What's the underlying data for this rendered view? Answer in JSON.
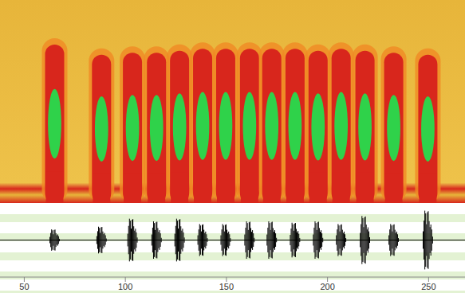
{
  "chart_data": [
    {
      "type": "spectrogram",
      "x": [
        65.0,
        88.2,
        103.5,
        115.4,
        126.8,
        138.2,
        149.6,
        161.4,
        172.4,
        183.9,
        195.3,
        206.7,
        218.5,
        232.7,
        249.6
      ],
      "values": [
        0.78,
        0.73,
        0.74,
        0.74,
        0.75,
        0.76,
        0.76,
        0.76,
        0.76,
        0.76,
        0.75,
        0.76,
        0.75,
        0.74,
        0.73
      ],
      "xlim": [
        38,
        268
      ],
      "ylim": [
        0,
        1
      ],
      "tick_labels": false,
      "color": "#2fd24a"
    },
    {
      "type": "bar",
      "x": [
        65.0,
        88.2,
        103.5,
        115.4,
        126.8,
        138.2,
        149.6,
        161.4,
        172.4,
        183.9,
        195.3,
        206.7,
        218.5,
        232.7,
        249.6
      ],
      "values": [
        0.32,
        0.4,
        0.64,
        0.56,
        0.64,
        0.48,
        0.48,
        0.56,
        0.56,
        0.52,
        0.56,
        0.48,
        0.72,
        0.48,
        0.88
      ],
      "xlim": [
        38,
        268
      ],
      "ylim": [
        -1,
        1
      ],
      "xticks": [
        50,
        100,
        150,
        200,
        250
      ],
      "tick_labels": "x",
      "color": "#000000"
    }
  ]
}
